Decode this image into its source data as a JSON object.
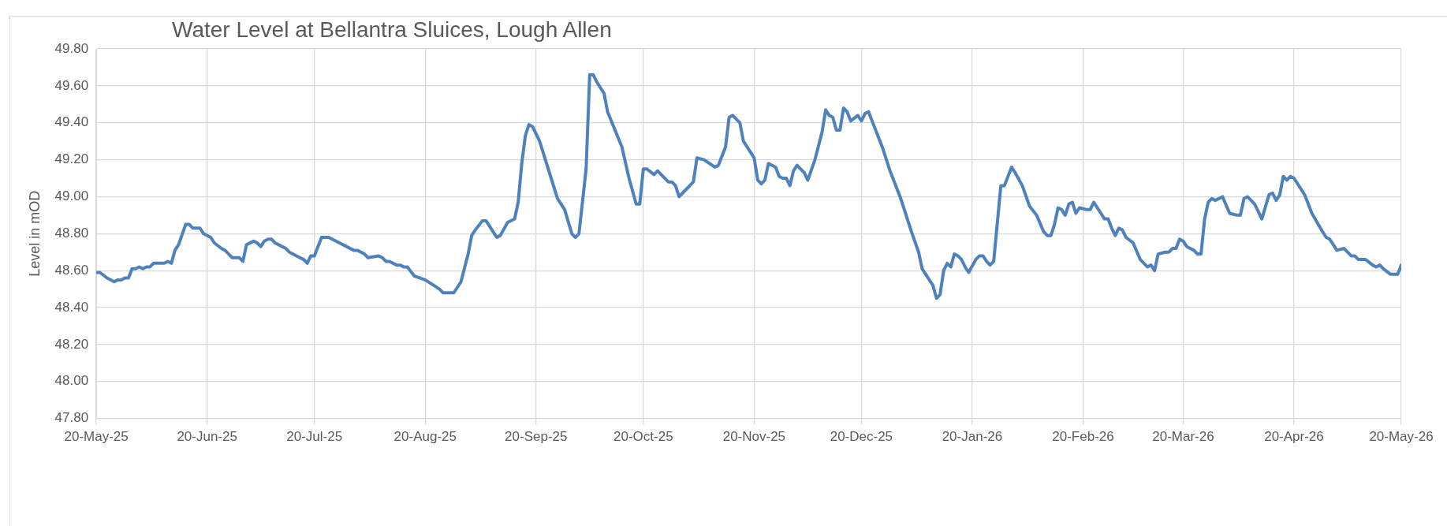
{
  "chart_data": {
    "type": "line",
    "title": "Water Level at Bellantra Sluices, Lough Allen",
    "ylabel": "Level in mOD",
    "xlim": [
      "2025-05-20",
      "2026-05-20"
    ],
    "xticks": [
      {
        "value": "2025-05-20",
        "label": "20-May-25"
      },
      {
        "value": "2025-06-20",
        "label": "20-Jun-25"
      },
      {
        "value": "2025-07-20",
        "label": "20-Jul-25"
      },
      {
        "value": "2025-08-20",
        "label": "20-Aug-25"
      },
      {
        "value": "2025-09-20",
        "label": "20-Sep-25"
      },
      {
        "value": "2025-10-20",
        "label": "20-Oct-25"
      },
      {
        "value": "2025-11-20",
        "label": "20-Nov-25"
      },
      {
        "value": "2025-12-20",
        "label": "20-Dec-25"
      },
      {
        "value": "2026-01-20",
        "label": "20-Jan-26"
      },
      {
        "value": "2026-02-20",
        "label": "20-Feb-26"
      },
      {
        "value": "2026-03-20",
        "label": "20-Mar-26"
      },
      {
        "value": "2026-04-20",
        "label": "20-Apr-26"
      },
      {
        "value": "2026-05-20",
        "label": "20-May-26"
      }
    ],
    "ylim": [
      47.8,
      49.8
    ],
    "yticks": [
      {
        "value": 47.8,
        "label": "47.80"
      },
      {
        "value": 48.0,
        "label": "48.00"
      },
      {
        "value": 48.2,
        "label": "48.20"
      },
      {
        "value": 48.4,
        "label": "48.40"
      },
      {
        "value": 48.6,
        "label": "48.60"
      },
      {
        "value": 48.8,
        "label": "48.80"
      },
      {
        "value": 49.0,
        "label": "49.00"
      },
      {
        "value": 49.2,
        "label": "49.20"
      },
      {
        "value": 49.4,
        "label": "49.40"
      },
      {
        "value": 49.6,
        "label": "49.60"
      },
      {
        "value": 49.8,
        "label": "49.80"
      }
    ],
    "grid": true,
    "legend": false,
    "marker": "none",
    "line_style": "solid",
    "series": [
      {
        "color": "#4f81bd",
        "x": [
          "2025-05-20",
          "2025-05-21",
          "2025-05-23",
          "2025-05-25",
          "2025-05-26",
          "2025-05-27",
          "2025-05-28",
          "2025-05-29",
          "2025-05-30",
          "2025-05-31",
          "2025-06-01",
          "2025-06-02",
          "2025-06-03",
          "2025-06-04",
          "2025-06-05",
          "2025-06-08",
          "2025-06-09",
          "2025-06-10",
          "2025-06-11",
          "2025-06-12",
          "2025-06-14",
          "2025-06-15",
          "2025-06-16",
          "2025-06-18",
          "2025-06-19",
          "2025-06-21",
          "2025-06-22",
          "2025-06-24",
          "2025-06-25",
          "2025-06-26",
          "2025-06-27",
          "2025-06-29",
          "2025-06-30",
          "2025-07-01",
          "2025-07-03",
          "2025-07-04",
          "2025-07-05",
          "2025-07-06",
          "2025-07-07",
          "2025-07-08",
          "2025-07-09",
          "2025-07-10",
          "2025-07-12",
          "2025-07-13",
          "2025-07-15",
          "2025-07-17",
          "2025-07-18",
          "2025-07-19",
          "2025-07-20",
          "2025-07-22",
          "2025-07-24",
          "2025-07-27",
          "2025-07-31",
          "2025-08-01",
          "2025-08-03",
          "2025-08-04",
          "2025-08-07",
          "2025-08-08",
          "2025-08-09",
          "2025-08-10",
          "2025-08-12",
          "2025-08-13",
          "2025-08-14",
          "2025-08-15",
          "2025-08-17",
          "2025-08-20",
          "2025-08-24",
          "2025-08-25",
          "2025-08-28",
          "2025-08-30",
          "2025-09-01",
          "2025-09-02",
          "2025-09-03",
          "2025-09-05",
          "2025-09-06",
          "2025-09-07",
          "2025-09-08",
          "2025-09-09",
          "2025-09-10",
          "2025-09-12",
          "2025-09-14",
          "2025-09-15",
          "2025-09-16",
          "2025-09-17",
          "2025-09-18",
          "2025-09-19",
          "2025-09-21",
          "2025-09-26",
          "2025-09-28",
          "2025-09-30",
          "2025-10-01",
          "2025-10-02",
          "2025-10-04",
          "2025-10-05",
          "2025-10-06",
          "2025-10-07",
          "2025-10-09",
          "2025-10-10",
          "2025-10-14",
          "2025-10-16",
          "2025-10-18",
          "2025-10-19",
          "2025-10-20",
          "2025-10-21",
          "2025-10-23",
          "2025-10-24",
          "2025-10-25",
          "2025-10-27",
          "2025-10-28",
          "2025-10-29",
          "2025-10-30",
          "2025-10-31",
          "2025-11-02",
          "2025-11-03",
          "2025-11-04",
          "2025-11-06",
          "2025-11-09",
          "2025-11-10",
          "2025-11-12",
          "2025-11-13",
          "2025-11-14",
          "2025-11-16",
          "2025-11-17",
          "2025-11-19",
          "2025-11-20",
          "2025-11-21",
          "2025-11-22",
          "2025-11-23",
          "2025-11-24",
          "2025-11-26",
          "2025-11-27",
          "2025-11-28",
          "2025-11-29",
          "2025-11-30",
          "2025-12-01",
          "2025-12-02",
          "2025-12-04",
          "2025-12-05",
          "2025-12-07",
          "2025-12-09",
          "2025-12-10",
          "2025-12-11",
          "2025-12-12",
          "2025-12-13",
          "2025-12-14",
          "2025-12-15",
          "2025-12-16",
          "2025-12-17",
          "2025-12-19",
          "2025-12-20",
          "2025-12-21",
          "2025-12-22",
          "2025-12-23",
          "2025-12-26",
          "2025-12-27",
          "2025-12-28",
          "2025-12-31",
          "2026-01-03",
          "2026-01-05",
          "2026-01-06",
          "2026-01-07",
          "2026-01-09",
          "2026-01-10",
          "2026-01-11",
          "2026-01-12",
          "2026-01-13",
          "2026-01-14",
          "2026-01-15",
          "2026-01-16",
          "2026-01-17",
          "2026-01-18",
          "2026-01-19",
          "2026-01-21",
          "2026-01-22",
          "2026-01-23",
          "2026-01-24",
          "2026-01-25",
          "2026-01-26",
          "2026-01-28",
          "2026-01-29",
          "2026-01-31",
          "2026-02-01",
          "2026-02-03",
          "2026-02-05",
          "2026-02-07",
          "2026-02-09",
          "2026-02-10",
          "2026-02-11",
          "2026-02-12",
          "2026-02-13",
          "2026-02-14",
          "2026-02-15",
          "2026-02-16",
          "2026-02-17",
          "2026-02-18",
          "2026-02-19",
          "2026-02-21",
          "2026-02-22",
          "2026-02-23",
          "2026-02-24",
          "2026-02-26",
          "2026-02-27",
          "2026-02-28",
          "2026-03-01",
          "2026-03-02",
          "2026-03-03",
          "2026-03-04",
          "2026-03-06",
          "2026-03-08",
          "2026-03-10",
          "2026-03-11",
          "2026-03-12",
          "2026-03-13",
          "2026-03-15",
          "2026-03-16",
          "2026-03-17",
          "2026-03-18",
          "2026-03-19",
          "2026-03-20",
          "2026-03-21",
          "2026-03-23",
          "2026-03-24",
          "2026-03-25",
          "2026-03-26",
          "2026-03-27",
          "2026-03-28",
          "2026-03-29",
          "2026-03-31",
          "2026-04-02",
          "2026-04-04",
          "2026-04-05",
          "2026-04-06",
          "2026-04-07",
          "2026-04-09",
          "2026-04-11",
          "2026-04-13",
          "2026-04-14",
          "2026-04-15",
          "2026-04-16",
          "2026-04-17",
          "2026-04-18",
          "2026-04-19",
          "2026-04-20",
          "2026-04-23",
          "2026-04-25",
          "2026-04-28",
          "2026-04-29",
          "2026-04-30",
          "2026-05-02",
          "2026-05-04",
          "2026-05-06",
          "2026-05-07",
          "2026-05-08",
          "2026-05-10",
          "2026-05-12",
          "2026-05-13",
          "2026-05-14",
          "2026-05-15",
          "2026-05-17",
          "2026-05-19",
          "2026-05-20"
        ],
        "values": [
          48.59,
          48.59,
          48.56,
          48.54,
          48.55,
          48.55,
          48.56,
          48.56,
          48.61,
          48.61,
          48.62,
          48.61,
          48.62,
          48.62,
          48.64,
          48.64,
          48.65,
          48.64,
          48.71,
          48.74,
          48.85,
          48.85,
          48.83,
          48.83,
          48.8,
          48.78,
          48.75,
          48.72,
          48.71,
          48.69,
          48.67,
          48.67,
          48.65,
          48.74,
          48.76,
          48.75,
          48.73,
          48.76,
          48.77,
          48.77,
          48.75,
          48.74,
          48.72,
          48.7,
          48.68,
          48.66,
          48.64,
          48.68,
          48.68,
          48.78,
          48.78,
          48.75,
          48.71,
          48.71,
          48.69,
          48.67,
          48.68,
          48.67,
          48.65,
          48.65,
          48.63,
          48.63,
          48.62,
          48.62,
          48.57,
          48.55,
          48.5,
          48.48,
          48.48,
          48.54,
          48.69,
          48.79,
          48.82,
          48.87,
          48.87,
          48.84,
          48.81,
          48.78,
          48.79,
          48.86,
          48.88,
          48.97,
          49.18,
          49.33,
          49.39,
          49.38,
          49.3,
          48.99,
          48.93,
          48.8,
          48.78,
          48.8,
          49.15,
          49.66,
          49.66,
          49.62,
          49.56,
          49.46,
          49.27,
          49.1,
          48.96,
          48.96,
          49.15,
          49.15,
          49.12,
          49.14,
          49.12,
          49.08,
          49.08,
          49.06,
          49.0,
          49.02,
          49.06,
          49.08,
          49.21,
          49.2,
          49.16,
          49.17,
          49.27,
          49.43,
          49.44,
          49.4,
          49.3,
          49.24,
          49.21,
          49.09,
          49.07,
          49.09,
          49.18,
          49.16,
          49.11,
          49.1,
          49.1,
          49.06,
          49.14,
          49.17,
          49.13,
          49.09,
          49.2,
          49.35,
          49.47,
          49.44,
          49.43,
          49.36,
          49.36,
          49.48,
          49.46,
          49.41,
          49.44,
          49.41,
          49.45,
          49.46,
          49.41,
          49.26,
          49.2,
          49.14,
          48.99,
          48.81,
          48.7,
          48.61,
          48.58,
          48.52,
          48.45,
          48.47,
          48.6,
          48.64,
          48.62,
          48.69,
          48.68,
          48.66,
          48.62,
          48.59,
          48.66,
          48.68,
          48.68,
          48.65,
          48.63,
          48.65,
          49.06,
          49.06,
          49.16,
          49.13,
          49.06,
          48.95,
          48.9,
          48.81,
          48.79,
          48.79,
          48.85,
          48.94,
          48.93,
          48.9,
          48.96,
          48.97,
          48.91,
          48.94,
          48.93,
          48.93,
          48.97,
          48.94,
          48.88,
          48.88,
          48.83,
          48.79,
          48.83,
          48.82,
          48.78,
          48.75,
          48.66,
          48.62,
          48.63,
          48.6,
          48.69,
          48.7,
          48.7,
          48.72,
          48.72,
          48.77,
          48.76,
          48.73,
          48.71,
          48.69,
          48.69,
          48.88,
          48.97,
          48.99,
          48.98,
          49.0,
          48.91,
          48.9,
          48.9,
          48.99,
          49.0,
          48.96,
          48.88,
          49.01,
          49.02,
          48.98,
          49.01,
          49.11,
          49.09,
          49.11,
          49.1,
          49.01,
          48.91,
          48.81,
          48.78,
          48.77,
          48.71,
          48.72,
          48.68,
          48.68,
          48.66,
          48.66,
          48.63,
          48.62,
          48.63,
          48.61,
          48.58,
          48.58,
          48.63
        ]
      }
    ]
  }
}
